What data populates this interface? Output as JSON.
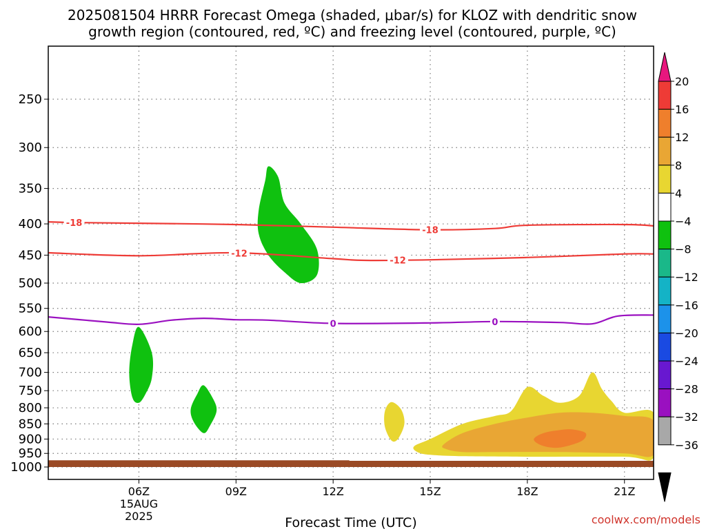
{
  "title_line1": "2025081504 HRRR Forecast Omega (shaded, μbar/s) for KLOZ with dendritic snow",
  "title_line2": "growth region (contoured, red, ºC) and freezing level (contoured, purple, ºC)",
  "chart_data": {
    "type": "time-height cross section",
    "title": "2025081504 HRRR Forecast Omega (shaded, μbar/s) for KLOZ with dendritic snow growth region (contoured, red, ºC) and freezing level (contoured, purple, ºC)",
    "xlabel": "Forecast Time (UTC)",
    "ylabel": "",
    "xlim_hours_utc": [
      3.2,
      21.9
    ],
    "ylim_hpa": [
      1000,
      200
    ],
    "y_scale": "log-pressure",
    "x_ticks": [
      {
        "hour": 6,
        "label": "06Z",
        "sublabels": [
          "15AUG",
          "2025"
        ]
      },
      {
        "hour": 9,
        "label": "09Z",
        "sublabels": []
      },
      {
        "hour": 12,
        "label": "12Z",
        "sublabels": []
      },
      {
        "hour": 15,
        "label": "15Z",
        "sublabels": []
      },
      {
        "hour": 18,
        "label": "18Z",
        "sublabels": []
      },
      {
        "hour": 21,
        "label": "21Z",
        "sublabels": []
      }
    ],
    "y_ticks": [
      250,
      300,
      350,
      400,
      450,
      500,
      550,
      600,
      650,
      700,
      750,
      800,
      850,
      900,
      950,
      1000
    ],
    "grid": true,
    "colorbar": {
      "label_values": [
        20,
        16,
        12,
        8,
        4,
        -4,
        -8,
        -12,
        -16,
        -20,
        -24,
        -28,
        -32,
        -36
      ],
      "bins": [
        {
          "range": [
            20,
            24
          ],
          "color": "#e8177e"
        },
        {
          "range": [
            16,
            20
          ],
          "color": "#ee3b36"
        },
        {
          "range": [
            12,
            16
          ],
          "color": "#ef7f2c"
        },
        {
          "range": [
            8,
            12
          ],
          "color": "#e9a634"
        },
        {
          "range": [
            4,
            8
          ],
          "color": "#e8d631"
        },
        {
          "range": [
            -4,
            4
          ],
          "color": "#ffffff"
        },
        {
          "range": [
            -8,
            -4
          ],
          "color": "#0fc10f"
        },
        {
          "range": [
            -12,
            -8
          ],
          "color": "#1ab889"
        },
        {
          "range": [
            -16,
            -12
          ],
          "color": "#14b3c6"
        },
        {
          "range": [
            -20,
            -16
          ],
          "color": "#1c92ea"
        },
        {
          "range": [
            -24,
            -20
          ],
          "color": "#1a4ae2"
        },
        {
          "range": [
            -28,
            -24
          ],
          "color": "#6818d0"
        },
        {
          "range": [
            -32,
            -28
          ],
          "color": "#9a10c0"
        },
        {
          "range": [
            -36,
            -32
          ],
          "color": "#a8a8a8"
        },
        {
          "range": [
            -40,
            -36
          ],
          "color": "#000000"
        }
      ]
    },
    "contours": [
      {
        "value": -18,
        "label": "-18",
        "color": "#ee3b36",
        "points": [
          [
            3.2,
            397
          ],
          [
            4.0,
            398
          ],
          [
            6.0,
            399
          ],
          [
            9.0,
            401
          ],
          [
            12.0,
            405
          ],
          [
            15.0,
            409
          ],
          [
            17.0,
            407
          ],
          [
            18.0,
            402
          ],
          [
            21.0,
            401
          ],
          [
            21.9,
            403
          ]
        ],
        "label_hours": [
          4.0,
          15.0
        ]
      },
      {
        "value": -12,
        "label": "-12",
        "color": "#ee3b36",
        "points": [
          [
            3.2,
            446
          ],
          [
            6.0,
            451
          ],
          [
            9.0,
            446
          ],
          [
            12.0,
            456
          ],
          [
            13.0,
            459
          ],
          [
            15.0,
            458
          ],
          [
            18.0,
            454
          ],
          [
            21.0,
            448
          ],
          [
            21.9,
            448
          ]
        ],
        "label_hours": [
          9.1,
          14.0
        ]
      },
      {
        "value": 0,
        "label": "0",
        "color": "#9a10c0",
        "points": [
          [
            3.2,
            568
          ],
          [
            5.0,
            579
          ],
          [
            6.0,
            584
          ],
          [
            7.0,
            575
          ],
          [
            8.0,
            571
          ],
          [
            9.0,
            574
          ],
          [
            10.0,
            575
          ],
          [
            12.0,
            582
          ],
          [
            15.0,
            581
          ],
          [
            17.0,
            578
          ],
          [
            19.0,
            580
          ],
          [
            20.0,
            583
          ],
          [
            20.8,
            566
          ],
          [
            21.9,
            564
          ]
        ],
        "label_hours": [
          12.0,
          17.0
        ]
      }
    ],
    "shaded_regions": [
      {
        "color": "#0fc10f",
        "omega_bin": [
          -8,
          -4
        ],
        "points": [
          [
            10.0,
            322
          ],
          [
            10.3,
            335
          ],
          [
            10.5,
            370
          ],
          [
            11.0,
            400
          ],
          [
            11.5,
            440
          ],
          [
            11.5,
            485
          ],
          [
            11.0,
            500
          ],
          [
            10.5,
            480
          ],
          [
            10.0,
            450
          ],
          [
            9.7,
            415
          ],
          [
            9.7,
            380
          ],
          [
            9.9,
            340
          ]
        ]
      },
      {
        "color": "#0fc10f",
        "omega_bin": [
          -8,
          -4
        ],
        "points": [
          [
            6.0,
            590
          ],
          [
            6.4,
            650
          ],
          [
            6.4,
            715
          ],
          [
            6.2,
            760
          ],
          [
            6.0,
            785
          ],
          [
            5.8,
            770
          ],
          [
            5.7,
            700
          ],
          [
            5.8,
            630
          ]
        ]
      },
      {
        "color": "#0fc10f",
        "omega_bin": [
          -8,
          -4
        ],
        "points": [
          [
            8.0,
            735
          ],
          [
            8.3,
            775
          ],
          [
            8.4,
            810
          ],
          [
            8.2,
            855
          ],
          [
            8.0,
            880
          ],
          [
            7.7,
            845
          ],
          [
            7.6,
            805
          ],
          [
            7.8,
            760
          ]
        ]
      },
      {
        "color": "#e8d631",
        "omega_bin": [
          4,
          8
        ],
        "points": [
          [
            13.8,
            783
          ],
          [
            14.1,
            805
          ],
          [
            14.2,
            850
          ],
          [
            14.0,
            900
          ],
          [
            13.8,
            905
          ],
          [
            13.6,
            860
          ],
          [
            13.6,
            810
          ]
        ]
      },
      {
        "color": "#e8d631",
        "omega_bin": [
          4,
          8
        ],
        "points": [
          [
            14.5,
            925
          ],
          [
            15.0,
            900
          ],
          [
            16.0,
            850
          ],
          [
            17.0,
            825
          ],
          [
            17.5,
            810
          ],
          [
            18.0,
            740
          ],
          [
            18.5,
            765
          ],
          [
            19.0,
            785
          ],
          [
            19.6,
            765
          ],
          [
            20.0,
            700
          ],
          [
            20.3,
            745
          ],
          [
            20.6,
            780
          ],
          [
            21.0,
            815
          ],
          [
            21.9,
            815
          ],
          [
            21.9,
            965
          ],
          [
            21.0,
            962
          ],
          [
            18.0,
            962
          ],
          [
            16.0,
            960
          ],
          [
            15.0,
            955
          ],
          [
            14.6,
            945
          ]
        ]
      },
      {
        "color": "#e9a634",
        "omega_bin": [
          8,
          12
        ],
        "points": [
          [
            15.4,
            920
          ],
          [
            16.0,
            880
          ],
          [
            17.0,
            850
          ],
          [
            18.0,
            830
          ],
          [
            19.0,
            815
          ],
          [
            20.0,
            815
          ],
          [
            21.0,
            825
          ],
          [
            21.9,
            840
          ],
          [
            21.9,
            955
          ],
          [
            21.0,
            950
          ],
          [
            19.0,
            945
          ],
          [
            17.0,
            945
          ],
          [
            16.0,
            945
          ],
          [
            15.5,
            935
          ]
        ]
      },
      {
        "color": "#ef7f2c",
        "omega_bin": [
          12,
          16
        ],
        "points": [
          [
            18.2,
            900
          ],
          [
            18.5,
            880
          ],
          [
            19.0,
            870
          ],
          [
            19.4,
            868
          ],
          [
            19.8,
            880
          ],
          [
            19.7,
            905
          ],
          [
            19.2,
            925
          ],
          [
            18.8,
            930
          ],
          [
            18.4,
            920
          ]
        ]
      },
      {
        "color": "#9a4a25",
        "label": "below ground",
        "points": [
          [
            3.2,
            975
          ],
          [
            12.5,
            975
          ],
          [
            12.5,
            977
          ],
          [
            21.9,
            977
          ],
          [
            21.9,
            1000
          ],
          [
            3.2,
            1000
          ]
        ]
      }
    ]
  },
  "watermark": "coolwx.com/models"
}
